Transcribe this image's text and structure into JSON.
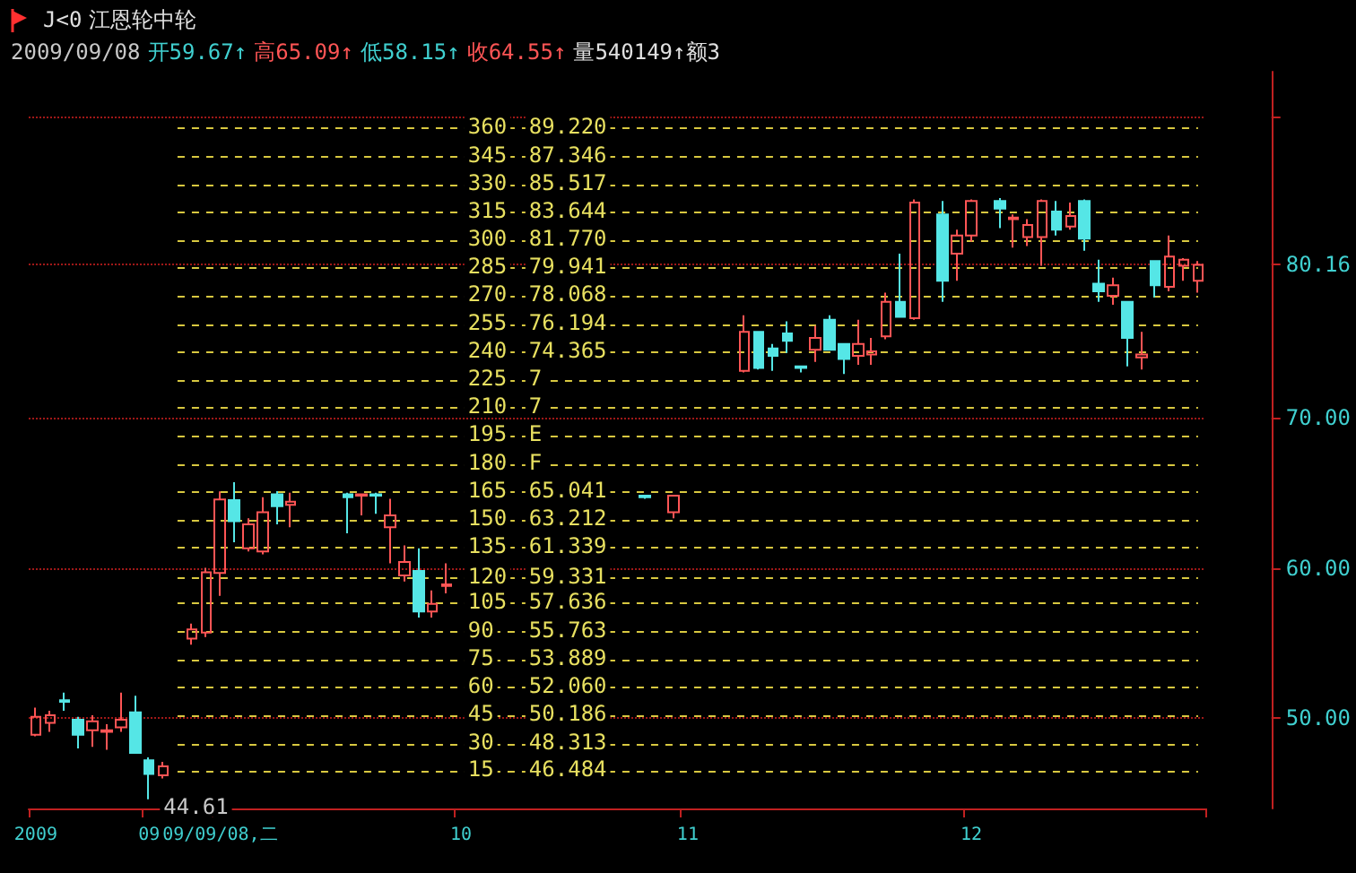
{
  "chart_data": {
    "type": "candlestick",
    "title": "江恩轮中轮",
    "categories": [
      "2009",
      null,
      null,
      null,
      null,
      null,
      null,
      null,
      "09",
      null,
      null,
      null,
      null,
      "09/09/08,二",
      null,
      null,
      null,
      null,
      null,
      null,
      null,
      null,
      null,
      null,
      null,
      null,
      null,
      null,
      null,
      null,
      "10",
      null,
      null,
      null,
      null,
      null,
      null,
      null,
      null,
      null,
      null,
      null,
      null,
      null,
      null,
      null,
      "11",
      null,
      null,
      null,
      null,
      null,
      null,
      null,
      null,
      null,
      null,
      null,
      null,
      null,
      null,
      null,
      null,
      null,
      null,
      null,
      "12",
      null,
      null,
      null,
      null,
      null,
      null,
      null,
      null,
      null,
      null,
      null,
      null,
      null,
      null,
      null,
      null
    ],
    "ohlc": [
      [
        48.9,
        50.7,
        48.8,
        50.1
      ],
      [
        49.7,
        50.5,
        49.1,
        50.2
      ],
      [
        51.2,
        51.7,
        50.5,
        51.1
      ],
      [
        49.9,
        50.1,
        48.0,
        48.9
      ],
      [
        49.2,
        50.2,
        48.1,
        49.8
      ],
      [
        49.1,
        49.6,
        47.9,
        49.2
      ],
      [
        49.4,
        51.7,
        49.1,
        49.9
      ],
      [
        50.4,
        51.5,
        47.7,
        47.7
      ],
      [
        47.2,
        47.4,
        44.61,
        46.3
      ],
      [
        46.2,
        47.1,
        46.0,
        46.8
      ],
      null,
      [
        55.3,
        56.3,
        54.9,
        55.9
      ],
      [
        55.7,
        60.0,
        55.4,
        59.7
      ],
      [
        59.67,
        65.09,
        58.15,
        64.55
      ],
      [
        64.5,
        65.7,
        61.7,
        63.1
      ],
      [
        61.3,
        63.3,
        61.1,
        62.9
      ],
      [
        61.1,
        64.7,
        60.9,
        63.7
      ],
      [
        64.9,
        65.1,
        62.9,
        64.1
      ],
      [
        64.2,
        65.0,
        62.7,
        64.4
      ],
      null,
      null,
      null,
      [
        64.9,
        65.0,
        62.3,
        64.7
      ],
      [
        64.8,
        64.9,
        63.5,
        64.9
      ],
      [
        64.9,
        65.0,
        63.6,
        64.8
      ],
      [
        62.7,
        64.6,
        60.3,
        63.5
      ],
      [
        59.5,
        61.5,
        59.1,
        60.4
      ],
      [
        59.8,
        61.3,
        56.7,
        57.1
      ],
      [
        57.1,
        58.5,
        56.7,
        57.6
      ],
      [
        58.8,
        60.3,
        58.3,
        58.9
      ],
      null,
      null,
      null,
      null,
      null,
      null,
      null,
      null,
      null,
      null,
      null,
      null,
      null,
      [
        64.8,
        64.8,
        64.6,
        64.7
      ],
      null,
      [
        63.7,
        64.8,
        63.3,
        64.8
      ],
      null,
      null,
      null,
      null,
      [
        73.1,
        76.8,
        73.0,
        75.7
      ],
      [
        75.7,
        75.7,
        73.2,
        73.3
      ],
      [
        74.6,
        74.9,
        73.1,
        74.1
      ],
      [
        75.6,
        76.4,
        74.3,
        75.1
      ],
      [
        73.4,
        73.4,
        73.0,
        73.3
      ],
      [
        74.5,
        76.1,
        73.7,
        75.3
      ],
      [
        76.5,
        76.8,
        74.5,
        74.5
      ],
      [
        74.9,
        74.9,
        72.9,
        73.9
      ],
      [
        74.1,
        76.5,
        73.5,
        74.9
      ],
      [
        74.2,
        75.3,
        73.5,
        74.4
      ],
      [
        75.4,
        78.3,
        75.2,
        77.7
      ],
      [
        77.7,
        80.9,
        76.7,
        76.7
      ],
      [
        76.6,
        84.5,
        76.5,
        84.3
      ],
      null,
      [
        83.5,
        84.4,
        77.7,
        79.1
      ],
      [
        80.9,
        82.5,
        79.1,
        82.1
      ],
      [
        82.1,
        84.5,
        81.7,
        84.4
      ],
      null,
      [
        84.4,
        84.6,
        82.6,
        83.9
      ],
      [
        83.2,
        83.5,
        81.3,
        83.3
      ],
      [
        82.0,
        83.2,
        81.4,
        82.8
      ],
      [
        82.0,
        84.5,
        80.1,
        84.4
      ],
      [
        83.7,
        84.4,
        82.1,
        82.5
      ],
      [
        82.7,
        84.3,
        82.5,
        83.4
      ],
      [
        84.4,
        84.5,
        81.1,
        81.9
      ],
      [
        78.9,
        80.5,
        77.7,
        78.4
      ],
      [
        78.1,
        79.3,
        77.5,
        78.8
      ],
      [
        77.7,
        77.7,
        73.4,
        75.3
      ],
      [
        74.0,
        75.7,
        73.2,
        74.2
      ],
      [
        80.4,
        80.4,
        78.0,
        78.8
      ],
      [
        78.7,
        82.1,
        78.4,
        80.7
      ],
      [
        80.1,
        80.6,
        79.1,
        80.5
      ],
      [
        79.1,
        80.4,
        78.3,
        80.16
      ]
    ],
    "ylim": [
      44,
      93
    ],
    "yticks": [
      {
        "value": 50,
        "label": "50.00"
      },
      {
        "value": 60,
        "label": "60.00"
      },
      {
        "value": 70,
        "label": "70.00"
      },
      {
        "value": 80.16,
        "label": "80.16"
      },
      {
        "value": 90,
        "label": null
      }
    ],
    "grid": "y",
    "ref_lines": [
      {
        "axis": "y",
        "value": 89.22,
        "label": "89.220"
      },
      {
        "axis": "y",
        "value": 87.346,
        "label": "87.346"
      },
      {
        "axis": "y",
        "value": 85.517,
        "label": "85.517"
      },
      {
        "axis": "y",
        "value": 83.644,
        "label": "83.644"
      },
      {
        "axis": "y",
        "value": 81.77,
        "label": "81.770"
      },
      {
        "axis": "y",
        "value": 79.941,
        "label": "79.941"
      },
      {
        "axis": "y",
        "value": 78.068,
        "label": "78.068"
      },
      {
        "axis": "y",
        "value": 76.194,
        "label": "76.194"
      },
      {
        "axis": "y",
        "value": 74.365,
        "label": "74.365"
      },
      {
        "axis": "y",
        "value": 72.52
      },
      {
        "axis": "y",
        "value": 70.65
      },
      {
        "axis": "y",
        "value": 68.78
      },
      {
        "axis": "y",
        "value": 66.91
      },
      {
        "axis": "y",
        "value": 65.041,
        "label": "65.041"
      },
      {
        "axis": "y",
        "value": 63.212,
        "label": "63.212"
      },
      {
        "axis": "y",
        "value": 61.339,
        "label": "61.339"
      },
      {
        "axis": "y",
        "value": 59.331,
        "label": "59.331"
      },
      {
        "axis": "y",
        "value": 57.636,
        "label": "57.636"
      },
      {
        "axis": "y",
        "value": 55.763,
        "label": "55.763"
      },
      {
        "axis": "y",
        "value": 53.889,
        "label": "53.889"
      },
      {
        "axis": "y",
        "value": 52.06,
        "label": "52.060"
      },
      {
        "axis": "y",
        "value": 50.186,
        "label": "50.186"
      },
      {
        "axis": "y",
        "value": 48.313,
        "label": "48.313"
      },
      {
        "axis": "y",
        "value": 46.484,
        "label": "46.484"
      }
    ],
    "annotations": [
      "J<0",
      "2009/09/08",
      "开59.67↑",
      "高65.09↑",
      "低58.15↑",
      "收64.55↑",
      "量540149↑额3",
      {
        "text": "44.61",
        "x": "09",
        "y": 44.61
      },
      {
        "text": "7",
        "y": 72.52
      },
      {
        "text": "7",
        "y": 70.65
      },
      {
        "text": "E",
        "y": 68.78
      },
      {
        "text": "F",
        "y": 66.91
      },
      {
        "text": "360",
        "y": 89.22
      },
      {
        "text": "345",
        "y": 87.346
      },
      {
        "text": "330",
        "y": 85.517
      },
      {
        "text": "315",
        "y": 83.644
      },
      {
        "text": "300",
        "y": 81.77
      },
      {
        "text": "285",
        "y": 79.941
      },
      {
        "text": "270",
        "y": 78.068
      },
      {
        "text": "255",
        "y": 76.194
      },
      {
        "text": "240",
        "y": 74.365
      },
      {
        "text": "225",
        "y": 72.52
      },
      {
        "text": "210",
        "y": 70.65
      },
      {
        "text": "195",
        "y": 68.78
      },
      {
        "text": "180",
        "y": 66.91
      },
      {
        "text": "165",
        "y": 65.041
      },
      {
        "text": "150",
        "y": 63.212
      },
      {
        "text": "135",
        "y": 61.339
      },
      {
        "text": "120",
        "y": 59.331
      },
      {
        "text": "105",
        "y": 57.636
      },
      {
        "text": "90",
        "y": 55.763
      },
      {
        "text": "75",
        "y": 53.889
      },
      {
        "text": "60",
        "y": 52.06
      },
      {
        "text": "45",
        "y": 50.186
      },
      {
        "text": "30",
        "y": 48.313
      },
      {
        "text": "15",
        "y": 46.484
      }
    ]
  }
}
